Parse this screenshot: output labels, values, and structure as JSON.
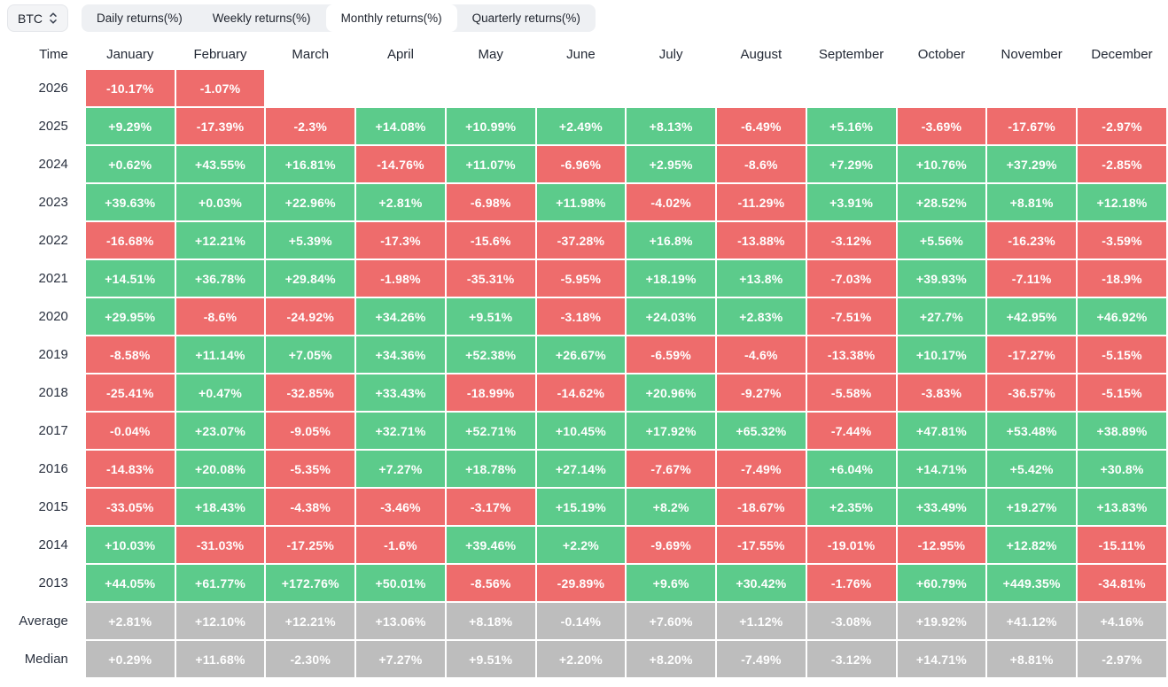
{
  "topbar": {
    "symbol": "BTC",
    "tabs": [
      {
        "label": "Daily returns(%)",
        "active": false
      },
      {
        "label": "Weekly returns(%)",
        "active": false
      },
      {
        "label": "Monthly returns(%)",
        "active": true
      },
      {
        "label": "Quarterly returns(%)",
        "active": false
      }
    ]
  },
  "colors": {
    "positive": "#5ccb8b",
    "negative": "#ee6c6c",
    "neutral": "#bdbdbd",
    "tabs_bg": "#eef0f3",
    "active_tab_bg": "#ffffff"
  },
  "chart_data": {
    "type": "table",
    "title": "BTC Monthly returns(%)",
    "columns": [
      "Time",
      "January",
      "February",
      "March",
      "April",
      "May",
      "June",
      "July",
      "August",
      "September",
      "October",
      "November",
      "December"
    ],
    "rows": [
      {
        "label": "2026",
        "kind": "year",
        "values": [
          "-10.17%",
          "-1.07%",
          "",
          "",
          "",
          "",
          "",
          "",
          "",
          "",
          "",
          ""
        ]
      },
      {
        "label": "2025",
        "kind": "year",
        "values": [
          "+9.29%",
          "-17.39%",
          "-2.3%",
          "+14.08%",
          "+10.99%",
          "+2.49%",
          "+8.13%",
          "-6.49%",
          "+5.16%",
          "-3.69%",
          "-17.67%",
          "-2.97%"
        ]
      },
      {
        "label": "2024",
        "kind": "year",
        "values": [
          "+0.62%",
          "+43.55%",
          "+16.81%",
          "-14.76%",
          "+11.07%",
          "-6.96%",
          "+2.95%",
          "-8.6%",
          "+7.29%",
          "+10.76%",
          "+37.29%",
          "-2.85%"
        ]
      },
      {
        "label": "2023",
        "kind": "year",
        "values": [
          "+39.63%",
          "+0.03%",
          "+22.96%",
          "+2.81%",
          "-6.98%",
          "+11.98%",
          "-4.02%",
          "-11.29%",
          "+3.91%",
          "+28.52%",
          "+8.81%",
          "+12.18%"
        ]
      },
      {
        "label": "2022",
        "kind": "year",
        "values": [
          "-16.68%",
          "+12.21%",
          "+5.39%",
          "-17.3%",
          "-15.6%",
          "-37.28%",
          "+16.8%",
          "-13.88%",
          "-3.12%",
          "+5.56%",
          "-16.23%",
          "-3.59%"
        ]
      },
      {
        "label": "2021",
        "kind": "year",
        "values": [
          "+14.51%",
          "+36.78%",
          "+29.84%",
          "-1.98%",
          "-35.31%",
          "-5.95%",
          "+18.19%",
          "+13.8%",
          "-7.03%",
          "+39.93%",
          "-7.11%",
          "-18.9%"
        ]
      },
      {
        "label": "2020",
        "kind": "year",
        "values": [
          "+29.95%",
          "-8.6%",
          "-24.92%",
          "+34.26%",
          "+9.51%",
          "-3.18%",
          "+24.03%",
          "+2.83%",
          "-7.51%",
          "+27.7%",
          "+42.95%",
          "+46.92%"
        ]
      },
      {
        "label": "2019",
        "kind": "year",
        "values": [
          "-8.58%",
          "+11.14%",
          "+7.05%",
          "+34.36%",
          "+52.38%",
          "+26.67%",
          "-6.59%",
          "-4.6%",
          "-13.38%",
          "+10.17%",
          "-17.27%",
          "-5.15%"
        ]
      },
      {
        "label": "2018",
        "kind": "year",
        "values": [
          "-25.41%",
          "+0.47%",
          "-32.85%",
          "+33.43%",
          "-18.99%",
          "-14.62%",
          "+20.96%",
          "-9.27%",
          "-5.58%",
          "-3.83%",
          "-36.57%",
          "-5.15%"
        ]
      },
      {
        "label": "2017",
        "kind": "year",
        "values": [
          "-0.04%",
          "+23.07%",
          "-9.05%",
          "+32.71%",
          "+52.71%",
          "+10.45%",
          "+17.92%",
          "+65.32%",
          "-7.44%",
          "+47.81%",
          "+53.48%",
          "+38.89%"
        ]
      },
      {
        "label": "2016",
        "kind": "year",
        "values": [
          "-14.83%",
          "+20.08%",
          "-5.35%",
          "+7.27%",
          "+18.78%",
          "+27.14%",
          "-7.67%",
          "-7.49%",
          "+6.04%",
          "+14.71%",
          "+5.42%",
          "+30.8%"
        ]
      },
      {
        "label": "2015",
        "kind": "year",
        "values": [
          "-33.05%",
          "+18.43%",
          "-4.38%",
          "-3.46%",
          "-3.17%",
          "+15.19%",
          "+8.2%",
          "-18.67%",
          "+2.35%",
          "+33.49%",
          "+19.27%",
          "+13.83%"
        ]
      },
      {
        "label": "2014",
        "kind": "year",
        "values": [
          "+10.03%",
          "-31.03%",
          "-17.25%",
          "-1.6%",
          "+39.46%",
          "+2.2%",
          "-9.69%",
          "-17.55%",
          "-19.01%",
          "-12.95%",
          "+12.82%",
          "-15.11%"
        ]
      },
      {
        "label": "2013",
        "kind": "year",
        "values": [
          "+44.05%",
          "+61.77%",
          "+172.76%",
          "+50.01%",
          "-8.56%",
          "-29.89%",
          "+9.6%",
          "+30.42%",
          "-1.76%",
          "+60.79%",
          "+449.35%",
          "-34.81%"
        ]
      },
      {
        "label": "Average",
        "kind": "stat",
        "values": [
          "+2.81%",
          "+12.10%",
          "+12.21%",
          "+13.06%",
          "+8.18%",
          "-0.14%",
          "+7.60%",
          "+1.12%",
          "-3.08%",
          "+19.92%",
          "+41.12%",
          "+4.16%"
        ]
      },
      {
        "label": "Median",
        "kind": "stat",
        "values": [
          "+0.29%",
          "+11.68%",
          "-2.30%",
          "+7.27%",
          "+9.51%",
          "+2.20%",
          "+8.20%",
          "-7.49%",
          "-3.12%",
          "+14.71%",
          "+8.81%",
          "-2.97%"
        ]
      }
    ]
  }
}
